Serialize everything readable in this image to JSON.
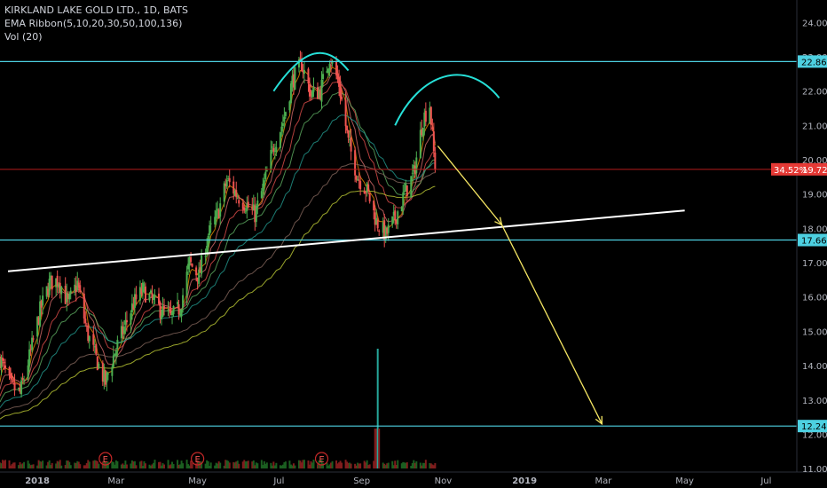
{
  "legend": {
    "symbol_line": "KIRKLAND LAKE GOLD LTD., 1D, BATS",
    "indicator_line": "EMA Ribbon(5,10,20,30,50,100,136)",
    "volume_line": "Vol (20)"
  },
  "price_change_badge": "34.52%",
  "colors": {
    "background": "#000000",
    "up_candle": "#4caf50",
    "down_candle": "#ef5350",
    "level_line": "#4dd0e1",
    "current_price_line": "#b71c1c",
    "trendline": "#ffffff",
    "projection_arrow": "#f5e663",
    "pattern_arc": "#26e0d8",
    "volume_spike": "#26a69a",
    "ema_ribbon": [
      "#ff9800",
      "#e57373",
      "#ef5350",
      "#66bb6a",
      "#26a69a",
      "#8d6e63",
      "#cddc39"
    ]
  },
  "chart_data": {
    "type": "candlestick",
    "title": "KIRKLAND LAKE GOLD LTD., 1D, BATS",
    "ylim": [
      10.9,
      24.55
    ],
    "y_ticks": [
      11.0,
      12.0,
      13.0,
      14.0,
      15.0,
      16.0,
      17.0,
      18.0,
      19.0,
      20.0,
      21.0,
      22.0,
      23.0,
      24.0
    ],
    "x_ticks": [
      "2018",
      "Mar",
      "May",
      "Jul",
      "Sep",
      "Nov",
      "2019",
      "Mar",
      "May",
      "Jul"
    ],
    "x_range": [
      "2017-12-04",
      "2019-07-24"
    ],
    "x_tick_dates": [
      "2018-01-01",
      "2018-03-01",
      "2018-05-01",
      "2018-07-01",
      "2018-09-01",
      "2018-11-01",
      "2019-01-01",
      "2019-03-01",
      "2019-05-01",
      "2019-07-01"
    ],
    "close_path": [
      [
        "2017-12-04",
        14.2
      ],
      [
        "2017-12-12",
        13.4
      ],
      [
        "2017-12-19",
        13.2
      ],
      [
        "2017-12-27",
        14.4
      ],
      [
        "2018-01-03",
        15.6
      ],
      [
        "2018-01-10",
        16.4
      ],
      [
        "2018-01-17",
        16.5
      ],
      [
        "2018-01-24",
        15.8
      ],
      [
        "2018-01-31",
        16.4
      ],
      [
        "2018-02-07",
        15.0
      ],
      [
        "2018-02-14",
        14.2
      ],
      [
        "2018-02-21",
        13.5
      ],
      [
        "2018-02-28",
        14.4
      ],
      [
        "2018-03-07",
        15.1
      ],
      [
        "2018-03-14",
        15.8
      ],
      [
        "2018-03-21",
        16.2
      ],
      [
        "2018-03-28",
        15.9
      ],
      [
        "2018-04-04",
        15.6
      ],
      [
        "2018-04-11",
        15.4
      ],
      [
        "2018-04-18",
        15.7
      ],
      [
        "2018-04-25",
        17.0
      ],
      [
        "2018-05-02",
        16.6
      ],
      [
        "2018-05-09",
        17.8
      ],
      [
        "2018-05-16",
        18.4
      ],
      [
        "2018-05-23",
        19.4
      ],
      [
        "2018-05-30",
        19.0
      ],
      [
        "2018-06-06",
        18.7
      ],
      [
        "2018-06-13",
        18.4
      ],
      [
        "2018-06-20",
        19.3
      ],
      [
        "2018-06-27",
        20.4
      ],
      [
        "2018-07-04",
        21.1
      ],
      [
        "2018-07-11",
        22.3
      ],
      [
        "2018-07-18",
        22.8
      ],
      [
        "2018-07-25",
        21.9
      ],
      [
        "2018-08-01",
        22.0
      ],
      [
        "2018-08-08",
        23.0
      ],
      [
        "2018-08-15",
        22.2
      ],
      [
        "2018-08-22",
        20.5
      ],
      [
        "2018-08-29",
        19.5
      ],
      [
        "2018-09-05",
        19.1
      ],
      [
        "2018-09-12",
        18.2
      ],
      [
        "2018-09-19",
        17.8
      ],
      [
        "2018-09-26",
        18.3
      ],
      [
        "2018-10-03",
        19.0
      ],
      [
        "2018-10-10",
        19.6
      ],
      [
        "2018-10-17",
        21.2
      ],
      [
        "2018-10-22",
        21.6
      ],
      [
        "2018-10-26",
        19.72
      ]
    ],
    "last_price": 19.72,
    "volume_spike_date": "2018-09-13",
    "horizontal_levels": [
      22.86,
      17.66,
      12.24
    ],
    "level_labels": [
      "22.86",
      "17.66",
      "12.24"
    ],
    "last_price_label": "19.72",
    "trendline": [
      [
        "2017-12-10",
        16.75
      ],
      [
        "2019-05-01",
        18.52
      ]
    ],
    "projection_arrows": [
      [
        [
          "2018-10-28",
          20.4
        ],
        [
          "2018-12-15",
          18.1
        ]
      ],
      [
        [
          "2018-12-15",
          18.1
        ],
        [
          "2019-02-28",
          12.3
        ]
      ]
    ],
    "pattern_arcs": [
      [
        [
          "2018-06-27",
          22.0
        ],
        [
          "2018-07-20",
          23.3
        ],
        [
          "2018-08-05",
          23.4
        ],
        [
          "2018-08-22",
          22.6
        ]
      ],
      [
        [
          "2018-09-26",
          21.0
        ],
        [
          "2018-10-14",
          22.5
        ],
        [
          "2018-11-18",
          23.0
        ],
        [
          "2018-12-13",
          21.8
        ]
      ]
    ],
    "earnings_markers": [
      "2018-02-21",
      "2018-05-01",
      "2018-08-02"
    ],
    "earnings_label": "E"
  }
}
